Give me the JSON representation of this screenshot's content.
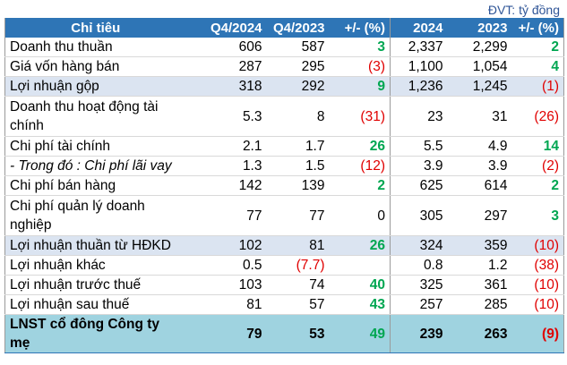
{
  "unit_label": "ĐVT: tỷ đồng",
  "headers": {
    "name": "Chỉ tiêu",
    "q4_2024": "Q4/2024",
    "q4_2023": "Q4/2023",
    "q_change": "+/- (%)",
    "y2024": "2024",
    "y2023": "2023",
    "y_change": "+/- (%)"
  },
  "colors": {
    "header_bg": "#2e75b6",
    "highlight_bg": "#dbe4f1",
    "total_bg": "#9fd3e0",
    "positive": "#00a651",
    "negative": "#e00000"
  },
  "rows": [
    {
      "name": "Doanh thu thuần",
      "q4_2024": "606",
      "q4_2023": "587",
      "q_change": "3",
      "q_dir": "pos",
      "y2024": "2,337",
      "y2023": "2,299",
      "y_change": "2",
      "y_dir": "pos",
      "style": ""
    },
    {
      "name": "Giá vốn hàng bán",
      "q4_2024": "287",
      "q4_2023": "295",
      "q_change": "(3)",
      "q_dir": "neg",
      "y2024": "1,100",
      "y2023": "1,054",
      "y_change": "4",
      "y_dir": "pos",
      "style": ""
    },
    {
      "name": "Lợi nhuận gộp",
      "q4_2024": "318",
      "q4_2023": "292",
      "q_change": "9",
      "q_dir": "pos",
      "y2024": "1,236",
      "y2023": "1,245",
      "y_change": "(1)",
      "y_dir": "neg",
      "style": "hl"
    },
    {
      "name": "Doanh thu hoạt động tài chính",
      "q4_2024": "5.3",
      "q4_2023": "8",
      "q_change": "(31)",
      "q_dir": "neg",
      "y2024": "23",
      "y2023": "31",
      "y_change": "(26)",
      "y_dir": "neg",
      "style": "tall"
    },
    {
      "name": "Chi phí tài chính",
      "q4_2024": "2.1",
      "q4_2023": "1.7",
      "q_change": "26",
      "q_dir": "pos",
      "y2024": "5.5",
      "y2023": "4.9",
      "y_change": "14",
      "y_dir": "pos",
      "style": ""
    },
    {
      "name": "- Trong đó : Chi phí lãi vay",
      "q4_2024": "1.3",
      "q4_2023": "1.5",
      "q_change": "(12)",
      "q_dir": "neg",
      "y2024": "3.9",
      "y2023": "3.9",
      "y_change": "(2)",
      "y_dir": "neg",
      "style": "ital"
    },
    {
      "name": "Chi phí bán hàng",
      "q4_2024": "142",
      "q4_2023": "139",
      "q_change": "2",
      "q_dir": "pos",
      "y2024": "625",
      "y2023": "614",
      "y_change": "2",
      "y_dir": "pos",
      "style": ""
    },
    {
      "name": "Chi phí quản lý doanh nghiệp",
      "q4_2024": "77",
      "q4_2023": "77",
      "q_change": "0",
      "q_dir": "zero",
      "y2024": "305",
      "y2023": "297",
      "y_change": "3",
      "y_dir": "pos",
      "style": "tall"
    },
    {
      "name": "Lợi nhuận thuần từ HĐKD",
      "q4_2024": "102",
      "q4_2023": "81",
      "q_change": "26",
      "q_dir": "pos",
      "y2024": "324",
      "y2023": "359",
      "y_change": "(10)",
      "y_dir": "neg",
      "style": "hl"
    },
    {
      "name": "Lợi nhuận khác",
      "q4_2024": "0.5",
      "q4_2023": "(7.7)",
      "q4_2023_dir": "neg",
      "q_change": "",
      "q_dir": "zero",
      "y2024": "0.8",
      "y2023": "1.2",
      "y_change": "(38)",
      "y_dir": "neg",
      "style": ""
    },
    {
      "name": "Lợi nhuận trước thuế",
      "q4_2024": "103",
      "q4_2023": "74",
      "q_change": "40",
      "q_dir": "pos",
      "y2024": "325",
      "y2023": "361",
      "y_change": "(10)",
      "y_dir": "neg",
      "style": ""
    },
    {
      "name": "Lợi nhuận sau thuế",
      "q4_2024": "81",
      "q4_2023": "57",
      "q_change": "43",
      "q_dir": "pos",
      "y2024": "257",
      "y2023": "285",
      "y_change": "(10)",
      "y_dir": "neg",
      "style": ""
    },
    {
      "name": "LNST cổ đông Công ty mẹ",
      "q4_2024": "79",
      "q4_2023": "53",
      "q_change": "49",
      "q_dir": "pos",
      "y2024": "239",
      "y2023": "263",
      "y_change": "(9)",
      "y_dir": "neg",
      "style": "total"
    }
  ]
}
